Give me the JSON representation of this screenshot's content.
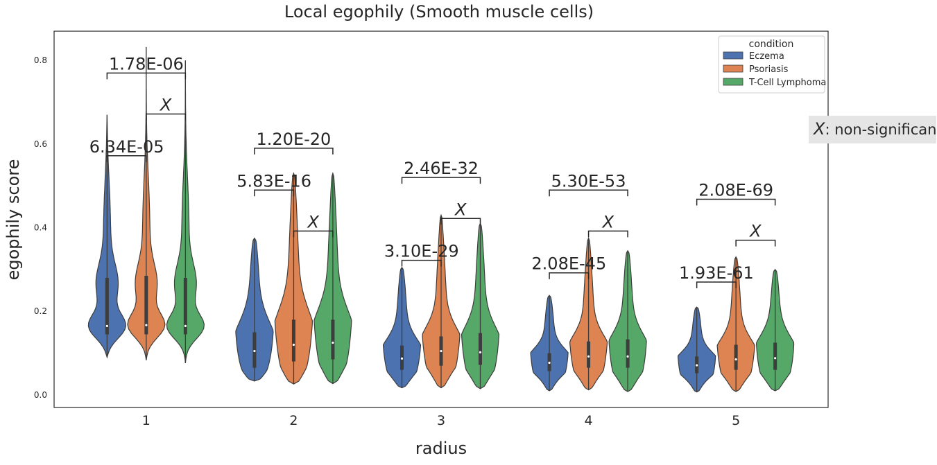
{
  "chart_data": {
    "type": "violin",
    "title": "Local egophily (Smooth muscle cells)",
    "xlabel": "radius",
    "ylabel": "egophily score",
    "categories": [
      "1",
      "2",
      "3",
      "4",
      "5"
    ],
    "ylim": [
      -0.03,
      0.87
    ],
    "yticks": [
      "0.0",
      "0.2",
      "0.4",
      "0.6",
      "0.8"
    ],
    "grid": false,
    "legend": {
      "title": "condition",
      "position": "top-right"
    },
    "series": [
      {
        "name": "Eczema",
        "color": "#4c72b0",
        "violins": [
          {
            "min": 0.09,
            "max": 0.67,
            "median": 0.165,
            "q1": 0.145,
            "q3": 0.28
          },
          {
            "min": 0.033,
            "max": 0.375,
            "median": 0.105,
            "q1": 0.065,
            "q3": 0.15
          },
          {
            "min": 0.017,
            "max": 0.305,
            "median": 0.087,
            "q1": 0.06,
            "q3": 0.118
          },
          {
            "min": 0.01,
            "max": 0.238,
            "median": 0.077,
            "q1": 0.057,
            "q3": 0.1
          },
          {
            "min": 0.007,
            "max": 0.21,
            "median": 0.071,
            "q1": 0.052,
            "q3": 0.092
          }
        ]
      },
      {
        "name": "Psoriasis",
        "color": "#dd8452",
        "violins": [
          {
            "min": 0.083,
            "max": 0.832,
            "median": 0.167,
            "q1": 0.145,
            "q3": 0.285
          },
          {
            "min": 0.026,
            "max": 0.53,
            "median": 0.12,
            "q1": 0.08,
            "q3": 0.18
          },
          {
            "min": 0.017,
            "max": 0.43,
            "median": 0.105,
            "q1": 0.07,
            "q3": 0.14
          },
          {
            "min": 0.012,
            "max": 0.375,
            "median": 0.092,
            "q1": 0.065,
            "q3": 0.128
          },
          {
            "min": 0.008,
            "max": 0.33,
            "median": 0.085,
            "q1": 0.06,
            "q3": 0.12
          }
        ]
      },
      {
        "name": "T-Cell Lymphoma",
        "color": "#55a868",
        "violins": [
          {
            "min": 0.076,
            "max": 0.8,
            "median": 0.165,
            "q1": 0.145,
            "q3": 0.28
          },
          {
            "min": 0.027,
            "max": 0.53,
            "median": 0.125,
            "q1": 0.085,
            "q3": 0.18
          },
          {
            "min": 0.015,
            "max": 0.41,
            "median": 0.102,
            "q1": 0.072,
            "q3": 0.148
          },
          {
            "min": 0.008,
            "max": 0.345,
            "median": 0.092,
            "q1": 0.065,
            "q3": 0.133
          },
          {
            "min": 0.01,
            "max": 0.3,
            "median": 0.088,
            "q1": 0.06,
            "q3": 0.125
          }
        ]
      }
    ],
    "annotations": [
      {
        "category": "1",
        "from": "Eczema",
        "to": "Psoriasis",
        "label": "6.34E-05",
        "y": 0.572
      },
      {
        "category": "1",
        "from": "Psoriasis",
        "to": "T-Cell Lymphoma",
        "label": "X",
        "y": 0.672
      },
      {
        "category": "1",
        "from": "Eczema",
        "to": "T-Cell Lymphoma",
        "label": "1.78E-06",
        "y": 0.77
      },
      {
        "category": "2",
        "from": "Eczema",
        "to": "Psoriasis",
        "label": "5.83E-16",
        "y": 0.49
      },
      {
        "category": "2",
        "from": "Psoriasis",
        "to": "T-Cell Lymphoma",
        "label": "X",
        "y": 0.392
      },
      {
        "category": "2",
        "from": "Eczema",
        "to": "T-Cell Lymphoma",
        "label": "1.20E-20",
        "y": 0.59
      },
      {
        "category": "3",
        "from": "Eczema",
        "to": "Psoriasis",
        "label": "3.10E-29",
        "y": 0.322
      },
      {
        "category": "3",
        "from": "Psoriasis",
        "to": "T-Cell Lymphoma",
        "label": "X",
        "y": 0.422
      },
      {
        "category": "3",
        "from": "Eczema",
        "to": "T-Cell Lymphoma",
        "label": "2.46E-32",
        "y": 0.52
      },
      {
        "category": "4",
        "from": "Eczema",
        "to": "Psoriasis",
        "label": "2.08E-45",
        "y": 0.292
      },
      {
        "category": "4",
        "from": "Psoriasis",
        "to": "T-Cell Lymphoma",
        "label": "X",
        "y": 0.392
      },
      {
        "category": "4",
        "from": "Eczema",
        "to": "T-Cell Lymphoma",
        "label": "5.30E-53",
        "y": 0.49
      },
      {
        "category": "5",
        "from": "Eczema",
        "to": "Psoriasis",
        "label": "1.93E-61",
        "y": 0.27
      },
      {
        "category": "5",
        "from": "Psoriasis",
        "to": "T-Cell Lymphoma",
        "label": "X",
        "y": 0.37
      },
      {
        "category": "5",
        "from": "Eczema",
        "to": "T-Cell Lymphoma",
        "label": "2.08E-69",
        "y": 0.468
      }
    ],
    "note": {
      "symbol": "X",
      "text": ": non-significant"
    }
  }
}
